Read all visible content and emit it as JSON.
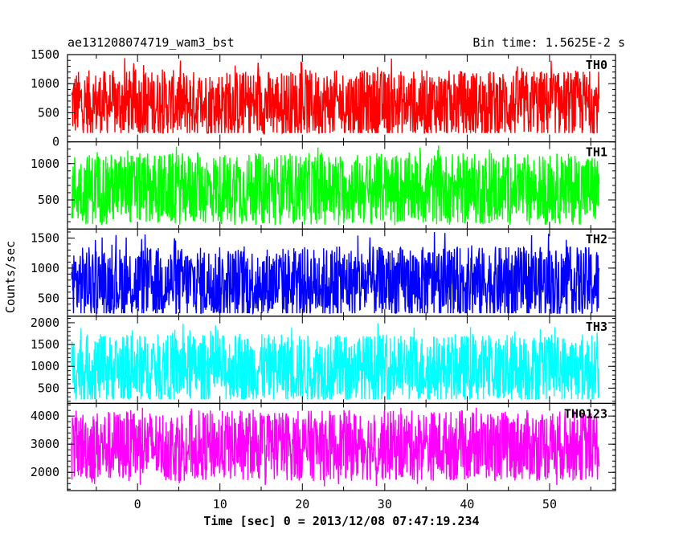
{
  "header": {
    "title": "ae131208074719_wam3_bst",
    "bin_time": "Bin time: 1.5625E-2 s"
  },
  "chart_data": {
    "type": "line",
    "xlabel": "Time [sec] 0 = 2013/12/08 07:47:19.234",
    "ylabel": "Counts/sec",
    "xlim": [
      -8.5,
      58
    ],
    "x_ticks": [
      0,
      10,
      20,
      30,
      40,
      50
    ],
    "x_tick_labels": [
      "0",
      "10",
      "20",
      "30",
      "40",
      "50"
    ],
    "x_data_range": [
      -8,
      56
    ],
    "panels": [
      {
        "name": "TH0",
        "color": "#ff0000",
        "ylim": [
          0,
          1500
        ],
        "y_ticks": [
          0,
          500,
          1000,
          1500
        ],
        "y_tick_labels": [
          "0",
          "500",
          "1000",
          "1500"
        ],
        "level_mean": 650,
        "level_min": 150,
        "level_max": 1450
      },
      {
        "name": "TH1",
        "color": "#00ff00",
        "ylim": [
          100,
          1300
        ],
        "y_ticks": [
          500,
          1000
        ],
        "y_tick_labels": [
          "500",
          "1000"
        ],
        "level_mean": 650,
        "level_min": 150,
        "level_max": 1250
      },
      {
        "name": "TH2",
        "color": "#0000ff",
        "ylim": [
          200,
          1650
        ],
        "y_ticks": [
          500,
          1000,
          1500
        ],
        "y_tick_labels": [
          "500",
          "1000",
          "1500"
        ],
        "level_mean": 750,
        "level_min": 250,
        "level_max": 1600
      },
      {
        "name": "TH3",
        "color": "#00ffff",
        "ylim": [
          150,
          2150
        ],
        "y_ticks": [
          500,
          1000,
          1500,
          2000
        ],
        "y_tick_labels": [
          "500",
          "1000",
          "1500",
          "2000"
        ],
        "level_mean": 950,
        "level_min": 250,
        "level_max": 2000
      },
      {
        "name": "TH0123",
        "color": "#ff00ff",
        "ylim": [
          1350,
          4450
        ],
        "y_ticks": [
          2000,
          3000,
          4000
        ],
        "y_tick_labels": [
          "2000",
          "3000",
          "4000"
        ],
        "level_mean": 2950,
        "level_min": 1500,
        "level_max": 4300
      }
    ],
    "grid": false,
    "legend": "panel labels at top-right of each panel"
  }
}
